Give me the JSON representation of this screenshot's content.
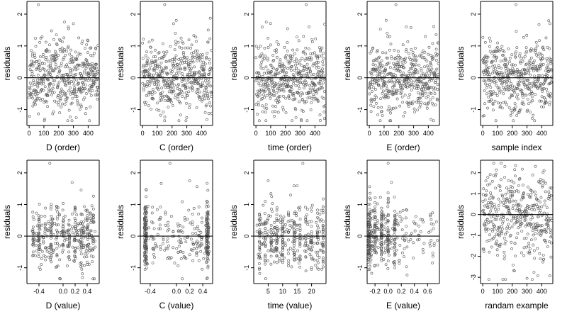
{
  "chart_data": [
    {
      "type": "scatter",
      "xlabel": "D (order)",
      "ylabel": "residuals",
      "xticks": [
        0,
        100,
        200,
        300,
        400
      ],
      "xtick_labels": [
        "0",
        "100",
        "200",
        "300",
        "400"
      ],
      "xlim": [
        -15,
        475
      ],
      "yticks": [
        -1,
        0,
        1,
        2
      ],
      "ytick_labels": [
        "-1",
        "0",
        "1",
        "2"
      ],
      "ylim": [
        -1.5,
        2.4
      ],
      "zero_line": 0,
      "gen": {
        "kind": "order",
        "n": 470,
        "xmin": 0,
        "xmax": 468,
        "sd": 0.55,
        "seed": 11,
        "clip": [
          -1.35,
          2.3
        ],
        "out": [
          [
            62,
            2.3
          ],
          [
            240,
            1.75
          ],
          [
            300,
            1.7
          ]
        ]
      }
    },
    {
      "type": "scatter",
      "xlabel": "C (order)",
      "ylabel": "residuals",
      "xticks": [
        0,
        100,
        200,
        300,
        400
      ],
      "xtick_labels": [
        "0",
        "100",
        "200",
        "300",
        "400"
      ],
      "xlim": [
        -15,
        475
      ],
      "yticks": [
        -1,
        0,
        1,
        2
      ],
      "ytick_labels": [
        "-1",
        "0",
        "1",
        "2"
      ],
      "ylim": [
        -1.5,
        2.4
      ],
      "zero_line": 0,
      "gen": {
        "kind": "order",
        "n": 470,
        "xmin": 0,
        "xmax": 468,
        "sd": 0.55,
        "seed": 23,
        "clip": [
          -1.35,
          2.3
        ],
        "out": [
          [
            150,
            2.3
          ],
          [
            210,
            1.7
          ]
        ]
      }
    },
    {
      "type": "scatter",
      "xlabel": "time (order)",
      "ylabel": "residuals",
      "xticks": [
        0,
        100,
        200,
        300,
        400
      ],
      "xtick_labels": [
        "0",
        "100",
        "200",
        "300",
        "400"
      ],
      "xlim": [
        -15,
        475
      ],
      "yticks": [
        -1,
        0,
        1,
        2
      ],
      "ytick_labels": [
        "-1",
        "0",
        "1",
        "2"
      ],
      "ylim": [
        -1.5,
        2.4
      ],
      "zero_line": 0,
      "gen": {
        "kind": "order",
        "n": 470,
        "xmin": 0,
        "xmax": 468,
        "sd": 0.55,
        "seed": 37,
        "clip": [
          -1.35,
          2.3
        ],
        "out": [
          [
            340,
            2.3
          ],
          [
            70,
            1.75
          ]
        ]
      }
    },
    {
      "type": "scatter",
      "xlabel": "E (order)",
      "ylabel": "residuals",
      "xticks": [
        0,
        100,
        200,
        300,
        400
      ],
      "xtick_labels": [
        "0",
        "100",
        "200",
        "300",
        "400"
      ],
      "xlim": [
        -15,
        475
      ],
      "yticks": [
        -1,
        0,
        1,
        2
      ],
      "ytick_labels": [
        "-1",
        "0",
        "1",
        "2"
      ],
      "ylim": [
        -1.5,
        2.4
      ],
      "zero_line": 0,
      "gen": {
        "kind": "order",
        "n": 470,
        "xmin": 0,
        "xmax": 468,
        "sd": 0.55,
        "seed": 41,
        "clip": [
          -1.35,
          2.3
        ],
        "out": [
          [
            180,
            2.3
          ],
          [
            250,
            1.6
          ]
        ]
      }
    },
    {
      "type": "scatter",
      "xlabel": "sample index",
      "ylabel": "residuals",
      "xticks": [
        0,
        100,
        200,
        300,
        400
      ],
      "xtick_labels": [
        "0",
        "100",
        "200",
        "300",
        "400"
      ],
      "xlim": [
        -15,
        475
      ],
      "yticks": [
        -1,
        0,
        1,
        2
      ],
      "ytick_labels": [
        "-1",
        "0",
        "1",
        "2"
      ],
      "ylim": [
        -1.5,
        2.4
      ],
      "zero_line": 0,
      "gen": {
        "kind": "order",
        "n": 470,
        "xmin": 0,
        "xmax": 468,
        "sd": 0.55,
        "seed": 53,
        "clip": [
          -1.35,
          2.3
        ],
        "out": [
          [
            225,
            2.3
          ],
          [
            455,
            1.7
          ]
        ]
      }
    },
    {
      "type": "scatter",
      "xlabel": "D (value)",
      "ylabel": "residuals",
      "xticks": [
        -0.4,
        0,
        0.2,
        0.4
      ],
      "xtick_labels": [
        "-0.4",
        "0.0",
        "0.2",
        "0.4"
      ],
      "xlim": [
        -0.6,
        0.6
      ],
      "yticks": [
        -1,
        0,
        1,
        2
      ],
      "ytick_labels": [
        "-1",
        "0",
        "1",
        "2"
      ],
      "ylim": [
        -1.5,
        2.4
      ],
      "zero_line": 0,
      "gen": {
        "kind": "value",
        "n": 400,
        "xmin": -0.5,
        "xmax": 0.55,
        "sd": 0.55,
        "seed": 61,
        "clip": [
          -1.35,
          2.3
        ],
        "cols": [
          -0.5,
          -0.4,
          -0.3,
          -0.2,
          -0.1,
          0.0,
          0.1,
          0.2,
          0.3,
          0.4,
          0.5
        ],
        "colfrac": 0.55,
        "jit": 0.004,
        "out": [
          [
            -0.22,
            2.3
          ],
          [
            0.15,
            1.7
          ]
        ]
      }
    },
    {
      "type": "scatter",
      "xlabel": "C (value)",
      "ylabel": "residuals",
      "xticks": [
        -0.4,
        0,
        0.2,
        0.4
      ],
      "xtick_labels": [
        "-0.4",
        "0.0",
        "0.2",
        "0.4"
      ],
      "xlim": [
        -0.55,
        0.55
      ],
      "yticks": [
        -1,
        0,
        1,
        2
      ],
      "ytick_labels": [
        "-1",
        "0",
        "1",
        "2"
      ],
      "ylim": [
        -1.5,
        2.4
      ],
      "zero_line": 0,
      "gen": {
        "kind": "value",
        "n": 400,
        "xmin": -0.48,
        "xmax": 0.5,
        "sd": 0.55,
        "seed": 71,
        "clip": [
          -1.35,
          2.3
        ],
        "cols": [
          -0.48,
          -0.46,
          0.46,
          0.48
        ],
        "colfrac": 0.6,
        "jit": 0.004,
        "out": [
          [
            -0.1,
            2.3
          ],
          [
            0.2,
            1.75
          ]
        ]
      }
    },
    {
      "type": "scatter",
      "xlabel": "time (value)",
      "ylabel": "residuals",
      "xticks": [
        5,
        10,
        15,
        20
      ],
      "xtick_labels": [
        "5",
        "10",
        "15",
        "20"
      ],
      "xlim": [
        0,
        25
      ],
      "yticks": [
        -1,
        0,
        1,
        2
      ],
      "ytick_labels": [
        "-1",
        "0",
        "1",
        "2"
      ],
      "ylim": [
        -1.5,
        2.4
      ],
      "zero_line": 0,
      "gen": {
        "kind": "value",
        "n": 420,
        "xmin": 1,
        "xmax": 24,
        "sd": 0.55,
        "seed": 83,
        "clip": [
          -1.35,
          2.3
        ],
        "cols": [
          2,
          4,
          6,
          8,
          10,
          12,
          14,
          16,
          18,
          20,
          22,
          24
        ],
        "colfrac": 0.6,
        "jit": 0.05,
        "out": [
          [
            17,
            2.3
          ],
          [
            5,
            1.75
          ]
        ]
      }
    },
    {
      "type": "scatter",
      "xlabel": "E (value)",
      "ylabel": "residuals",
      "xticks": [
        -0.2,
        0,
        0.2,
        0.4,
        0.6
      ],
      "xtick_labels": [
        "-0.2",
        "0.0",
        "0.2",
        "0.4",
        "0.6"
      ],
      "xlim": [
        -0.32,
        0.78
      ],
      "yticks": [
        -1,
        0,
        1,
        2
      ],
      "ytick_labels": [
        "-1",
        "0",
        "1",
        "2"
      ],
      "ylim": [
        -1.5,
        2.4
      ],
      "zero_line": 0,
      "gen": {
        "kind": "value",
        "n": 420,
        "xmin": -0.3,
        "xmax": 0.75,
        "sd": 0.5,
        "seed": 97,
        "clip": [
          -1.35,
          2.3
        ],
        "cols": [
          -0.3,
          -0.28,
          -0.2,
          -0.1,
          0.0,
          0.1
        ],
        "colfrac": 0.55,
        "jit": 0.004,
        "skew": 2.0,
        "out": [
          [
            0.0,
            2.3
          ],
          [
            0.05,
            1.7
          ]
        ]
      }
    },
    {
      "type": "scatter",
      "xlabel": "randam example",
      "ylabel": "residuals",
      "xticks": [
        0,
        100,
        200,
        300,
        400
      ],
      "xtick_labels": [
        "0",
        "100",
        "200",
        "300",
        "400"
      ],
      "xlim": [
        -15,
        475
      ],
      "yticks": [
        -3,
        -2,
        -1,
        0,
        1,
        2
      ],
      "ytick_labels": [
        "-3",
        "-2",
        "-1",
        "0",
        "1",
        "2"
      ],
      "ylim": [
        -3.3,
        2.6
      ],
      "zero_line": 0,
      "gen": {
        "kind": "order",
        "n": 420,
        "xmin": 0,
        "xmax": 468,
        "sd": 1.1,
        "seed": 109,
        "clip": [
          -3.1,
          2.45
        ],
        "out": [
          [
            300,
            -3.05
          ],
          [
            150,
            2.3
          ]
        ]
      }
    }
  ]
}
